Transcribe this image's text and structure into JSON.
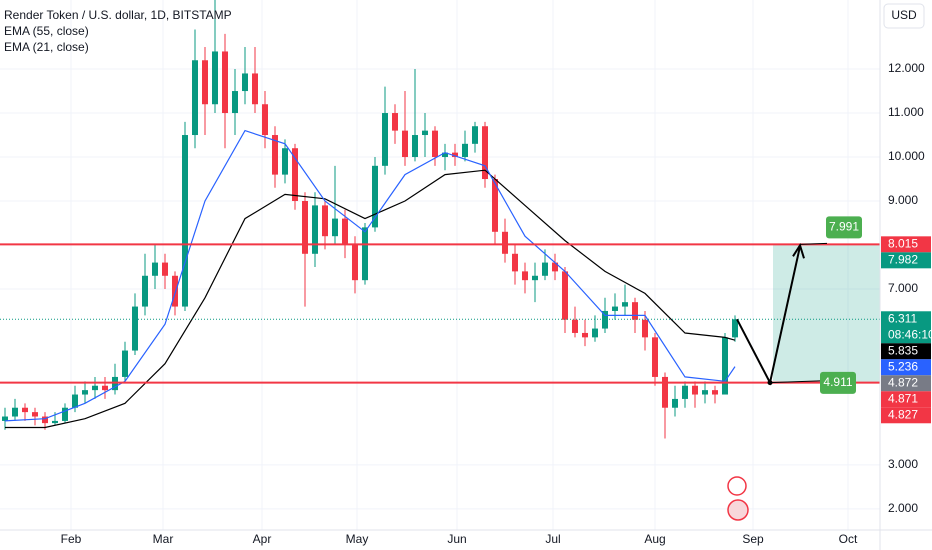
{
  "chart_data": {
    "type": "candlestick",
    "title": "Render Token / U.S. dollar, 1D, BITSTAMP",
    "currency": "USD",
    "up_color": "#089981",
    "down_color": "#f23645",
    "ylim": [
      1.52,
      13.57
    ],
    "yticks": [
      {
        "value": 12,
        "label": "12.000"
      },
      {
        "value": 11,
        "label": "11.000"
      },
      {
        "value": 10,
        "label": "10.000"
      },
      {
        "value": 9,
        "label": "9.000"
      },
      {
        "value": 7,
        "label": "7.000"
      },
      {
        "value": 3,
        "label": "3.000"
      },
      {
        "value": 2,
        "label": "2.000"
      }
    ],
    "xlim": [
      -0.5,
      87.5
    ],
    "xticks": [
      {
        "value": 6.6,
        "label": "Feb"
      },
      {
        "value": 15.8,
        "label": "Mar"
      },
      {
        "value": 25.7,
        "label": "Apr"
      },
      {
        "value": 35.2,
        "label": "May"
      },
      {
        "value": 45.2,
        "label": "Jun"
      },
      {
        "value": 54.8,
        "label": "Jul"
      },
      {
        "value": 65,
        "label": "Aug"
      },
      {
        "value": 74.8,
        "label": "Sep"
      },
      {
        "value": 84.3,
        "label": "Oct"
      }
    ],
    "candles": [
      [
        4.0,
        4.3,
        3.8,
        4.1
      ],
      [
        4.1,
        4.5,
        4.0,
        4.3
      ],
      [
        4.3,
        4.4,
        4.0,
        4.2
      ],
      [
        4.2,
        4.3,
        3.9,
        4.1
      ],
      [
        4.1,
        4.2,
        3.8,
        3.95
      ],
      [
        3.95,
        4.2,
        3.9,
        4.0
      ],
      [
        4.0,
        4.4,
        3.95,
        4.3
      ],
      [
        4.3,
        4.8,
        4.2,
        4.6
      ],
      [
        4.6,
        4.9,
        4.4,
        4.7
      ],
      [
        4.7,
        5.0,
        4.5,
        4.8
      ],
      [
        4.8,
        5.0,
        4.5,
        4.7
      ],
      [
        4.7,
        5.3,
        4.6,
        5.0
      ],
      [
        5.0,
        5.8,
        4.9,
        5.6
      ],
      [
        5.6,
        6.9,
        5.5,
        6.6
      ],
      [
        6.6,
        7.8,
        6.4,
        7.3
      ],
      [
        7.3,
        8.0,
        7.0,
        7.6
      ],
      [
        7.6,
        7.8,
        7.0,
        7.3
      ],
      [
        7.3,
        7.4,
        6.4,
        6.6
      ],
      [
        6.6,
        10.8,
        6.5,
        10.5
      ],
      [
        10.5,
        12.9,
        10.2,
        12.2
      ],
      [
        12.2,
        12.5,
        10.5,
        11.2
      ],
      [
        11.2,
        13.6,
        11.0,
        12.4
      ],
      [
        12.4,
        12.8,
        10.2,
        11.0
      ],
      [
        11.0,
        12.0,
        10.5,
        11.5
      ],
      [
        11.5,
        12.5,
        11.2,
        11.9
      ],
      [
        11.9,
        12.5,
        11.0,
        11.2
      ],
      [
        11.2,
        11.5,
        10.2,
        10.5
      ],
      [
        10.5,
        10.7,
        9.3,
        9.6
      ],
      [
        9.6,
        10.4,
        9.4,
        10.2
      ],
      [
        10.2,
        10.3,
        8.8,
        9.0
      ],
      [
        9.0,
        9.2,
        6.6,
        7.8
      ],
      [
        7.8,
        9.2,
        7.5,
        8.9
      ],
      [
        8.9,
        9.0,
        7.9,
        8.2
      ],
      [
        8.2,
        9.8,
        8.0,
        8.6
      ],
      [
        8.6,
        8.8,
        7.7,
        8.0
      ],
      [
        8.0,
        8.2,
        6.9,
        7.2
      ],
      [
        7.2,
        8.5,
        7.1,
        8.4
      ],
      [
        8.4,
        10.0,
        8.3,
        9.8
      ],
      [
        9.8,
        11.6,
        9.6,
        11.0
      ],
      [
        11.0,
        11.2,
        10.3,
        10.6
      ],
      [
        10.6,
        11.5,
        9.8,
        10.0
      ],
      [
        10.0,
        12.0,
        9.9,
        10.5
      ],
      [
        10.5,
        11.0,
        10.0,
        10.6
      ],
      [
        10.6,
        10.7,
        9.8,
        10.0
      ],
      [
        10.0,
        10.3,
        9.7,
        10.1
      ],
      [
        10.1,
        10.3,
        9.8,
        10.0
      ],
      [
        10.0,
        10.6,
        9.9,
        10.3
      ],
      [
        10.3,
        10.8,
        10.1,
        10.7
      ],
      [
        10.7,
        10.8,
        9.3,
        9.5
      ],
      [
        9.5,
        9.6,
        8.0,
        8.3
      ],
      [
        8.3,
        8.6,
        7.6,
        7.8
      ],
      [
        7.8,
        8.0,
        7.1,
        7.4
      ],
      [
        7.4,
        7.6,
        6.9,
        7.2
      ],
      [
        7.2,
        7.6,
        6.7,
        7.3
      ],
      [
        7.3,
        7.9,
        7.2,
        7.6
      ],
      [
        7.6,
        7.8,
        7.2,
        7.4
      ],
      [
        7.4,
        7.5,
        6.0,
        6.3
      ],
      [
        6.3,
        6.6,
        5.9,
        6.0
      ],
      [
        6.0,
        6.3,
        5.7,
        5.9
      ],
      [
        5.9,
        6.4,
        5.8,
        6.1
      ],
      [
        6.1,
        6.8,
        6.0,
        6.5
      ],
      [
        6.5,
        6.9,
        6.3,
        6.6
      ],
      [
        6.6,
        7.1,
        6.4,
        6.7
      ],
      [
        6.7,
        6.8,
        6.0,
        6.3
      ],
      [
        6.3,
        6.5,
        5.6,
        5.9
      ],
      [
        5.9,
        6.0,
        4.8,
        5.0
      ],
      [
        5.0,
        5.1,
        3.6,
        4.3
      ],
      [
        4.3,
        4.8,
        4.1,
        4.5
      ],
      [
        4.5,
        4.9,
        4.3,
        4.8
      ],
      [
        4.8,
        4.9,
        4.3,
        4.6
      ],
      [
        4.6,
        4.9,
        4.4,
        4.7
      ],
      [
        4.7,
        4.8,
        4.4,
        4.6
      ],
      [
        4.6,
        6.0,
        4.6,
        5.9
      ],
      [
        5.9,
        6.4,
        5.8,
        6.311
      ]
    ],
    "series": [
      {
        "name": "EMA (55, close)",
        "color": "#000000",
        "x": [
          0,
          4,
          8,
          12,
          16,
          20,
          24,
          28,
          32,
          36,
          40,
          44,
          48,
          52,
          56,
          60,
          64,
          68,
          72,
          73
        ],
        "values": [
          3.85,
          3.85,
          4.05,
          4.4,
          5.3,
          6.8,
          8.6,
          9.15,
          9.05,
          8.6,
          9.0,
          9.6,
          9.7,
          8.9,
          8.1,
          7.4,
          6.9,
          6.0,
          5.9,
          5.835
        ]
      },
      {
        "name": "EMA (21, close)",
        "color": "#2962ff",
        "x": [
          0,
          4,
          8,
          12,
          16,
          20,
          24,
          28,
          32,
          36,
          40,
          44,
          48,
          52,
          56,
          60,
          64,
          68,
          72,
          73
        ],
        "values": [
          4.0,
          4.05,
          4.4,
          4.9,
          6.2,
          9.0,
          10.6,
          10.3,
          9.0,
          8.3,
          9.6,
          10.1,
          9.8,
          8.2,
          7.4,
          6.4,
          6.4,
          5.0,
          4.9,
          5.236
        ]
      }
    ],
    "levels": [
      8.015,
      4.871
    ],
    "level_color": "#f23645",
    "price_labels": [
      {
        "value": 8.015,
        "color": "#f23645"
      },
      {
        "value": 7.982,
        "color": "#089981"
      },
      {
        "value": 6.311,
        "color": "#089981",
        "sub": "08:46:10"
      },
      {
        "value": 5.835,
        "color": "#000000"
      },
      {
        "value": 5.236,
        "color": "#2962ff"
      },
      {
        "value": 4.872,
        "color": "#787b86"
      },
      {
        "value": 4.871,
        "color": "#f23645"
      },
      {
        "value": 4.827,
        "color": "#f23645"
      }
    ],
    "annotations": [
      7.991,
      4.911
    ]
  }
}
